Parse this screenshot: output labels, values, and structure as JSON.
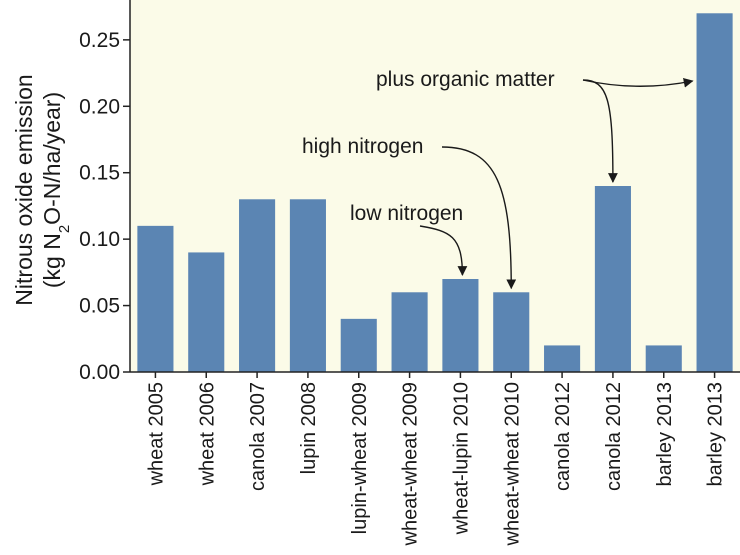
{
  "chart_data": {
    "type": "bar",
    "categories": [
      "wheat 2005",
      "wheat 2006",
      "canola 2007",
      "lupin 2008",
      "lupin-wheat 2009",
      "wheat-wheat 2009",
      "wheat-lupin 2010",
      "wheat-wheat 2010",
      "canola 2012",
      "canola 2012",
      "barley 2013",
      "barley 2013"
    ],
    "values": [
      0.11,
      0.09,
      0.13,
      0.13,
      0.04,
      0.06,
      0.07,
      0.06,
      0.02,
      0.14,
      0.02,
      0.27
    ],
    "ylabel_line1": "Nitrous oxide emission",
    "ylabel_line2_prefix": "(kg N",
    "ylabel_line2_sub": "2",
    "ylabel_line2_suffix": "O-N/ha/year)",
    "ylim": [
      0,
      0.28
    ],
    "yticks": [
      "0.00",
      "0.05",
      "0.10",
      "0.15",
      "0.20",
      "0.25"
    ],
    "annotations": [
      {
        "text": "plus organic matter",
        "targets": [
          9,
          11
        ]
      },
      {
        "text": "high nitrogen",
        "targets": [
          7
        ]
      },
      {
        "text": "low nitrogen",
        "targets": [
          6
        ]
      }
    ],
    "colors": {
      "bar": "#5b85b3",
      "background": "#fbfbe8",
      "axis": "#222222"
    }
  }
}
